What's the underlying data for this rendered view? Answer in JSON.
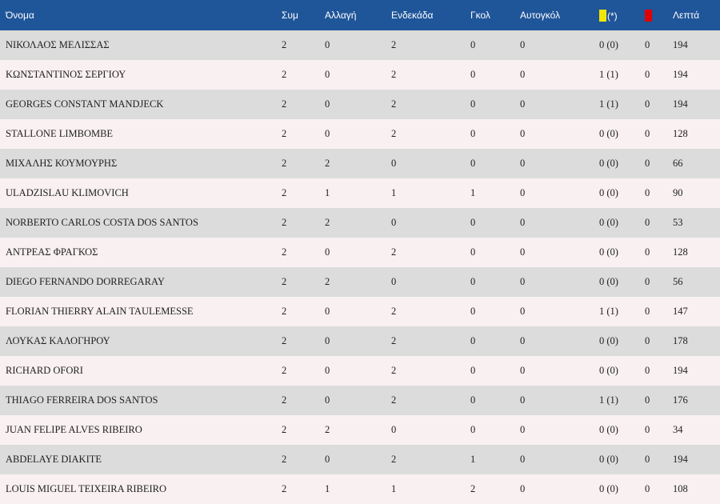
{
  "table": {
    "headers": {
      "name": "Όνομα",
      "appearances": "Συμ",
      "sub": "Αλλαγή",
      "starting": "Ενδεκάδα",
      "goals": "Γκολ",
      "own_goals": "Αυτογκόλ",
      "yellow_suffix": "(*)",
      "minutes": "Λεπτά"
    },
    "colors": {
      "header_bg": "#1f5599",
      "yellow_card": "#f2e600",
      "red_card": "#e00000"
    },
    "rows": [
      {
        "name": "ΝΙΚΟΛΑΟΣ ΜΕΛΙΣΣΑΣ",
        "apps": "2",
        "sub": "0",
        "start": "2",
        "goals": "0",
        "own": "0",
        "yellow": "0 (0)",
        "red": "0",
        "min": "194"
      },
      {
        "name": "ΚΩΝΣΤΑΝΤΙΝΟΣ ΣΕΡΓΙΟΥ",
        "apps": "2",
        "sub": "0",
        "start": "2",
        "goals": "0",
        "own": "0",
        "yellow": "1 (1)",
        "red": "0",
        "min": "194"
      },
      {
        "name": "GEORGES CONSTANT MANDJECK",
        "apps": "2",
        "sub": "0",
        "start": "2",
        "goals": "0",
        "own": "0",
        "yellow": "1 (1)",
        "red": "0",
        "min": "194"
      },
      {
        "name": "STALLONE LIMBOMBE",
        "apps": "2",
        "sub": "0",
        "start": "2",
        "goals": "0",
        "own": "0",
        "yellow": "0 (0)",
        "red": "0",
        "min": "128"
      },
      {
        "name": "ΜΙΧΑΛΗΣ ΚΟΥΜΟΥΡΗΣ",
        "apps": "2",
        "sub": "2",
        "start": "0",
        "goals": "0",
        "own": "0",
        "yellow": "0 (0)",
        "red": "0",
        "min": "66"
      },
      {
        "name": "ULADZISLAU KLIMOVICH",
        "apps": "2",
        "sub": "1",
        "start": "1",
        "goals": "1",
        "own": "0",
        "yellow": "0 (0)",
        "red": "0",
        "min": "90"
      },
      {
        "name": "NORBERTO CARLOS COSTA DOS SANTOS",
        "apps": "2",
        "sub": "2",
        "start": "0",
        "goals": "0",
        "own": "0",
        "yellow": "0 (0)",
        "red": "0",
        "min": "53"
      },
      {
        "name": "ΑΝΤΡΕΑΣ ΦΡΑΓΚΟΣ",
        "apps": "2",
        "sub": "0",
        "start": "2",
        "goals": "0",
        "own": "0",
        "yellow": "0 (0)",
        "red": "0",
        "min": "128"
      },
      {
        "name": "DIEGO FERNANDO DORREGARAY",
        "apps": "2",
        "sub": "2",
        "start": "0",
        "goals": "0",
        "own": "0",
        "yellow": "0 (0)",
        "red": "0",
        "min": "56"
      },
      {
        "name": "FLORIAN THIERRY ALAIN TAULEMESSE",
        "apps": "2",
        "sub": "0",
        "start": "2",
        "goals": "0",
        "own": "0",
        "yellow": "1 (1)",
        "red": "0",
        "min": "147"
      },
      {
        "name": "ΛΟΥΚΑΣ ΚΑΛΟΓΗΡΟΥ",
        "apps": "2",
        "sub": "0",
        "start": "2",
        "goals": "0",
        "own": "0",
        "yellow": "0 (0)",
        "red": "0",
        "min": "178"
      },
      {
        "name": "RICHARD OFORI",
        "apps": "2",
        "sub": "0",
        "start": "2",
        "goals": "0",
        "own": "0",
        "yellow": "0 (0)",
        "red": "0",
        "min": "194"
      },
      {
        "name": "THIAGO FERREIRA DOS SANTOS",
        "apps": "2",
        "sub": "0",
        "start": "2",
        "goals": "0",
        "own": "0",
        "yellow": "1 (1)",
        "red": "0",
        "min": "176"
      },
      {
        "name": "JUAN FELIPE ALVES RIBEIRO",
        "apps": "2",
        "sub": "2",
        "start": "0",
        "goals": "0",
        "own": "0",
        "yellow": "0 (0)",
        "red": "0",
        "min": "34"
      },
      {
        "name": "ABDELAYE DIAKITE",
        "apps": "2",
        "sub": "0",
        "start": "2",
        "goals": "1",
        "own": "0",
        "yellow": "0 (0)",
        "red": "0",
        "min": "194"
      },
      {
        "name": "LOUIS MIGUEL TEIXEIRA RIBEIRO",
        "apps": "2",
        "sub": "1",
        "start": "1",
        "goals": "2",
        "own": "0",
        "yellow": "0 (0)",
        "red": "0",
        "min": "108"
      }
    ]
  }
}
